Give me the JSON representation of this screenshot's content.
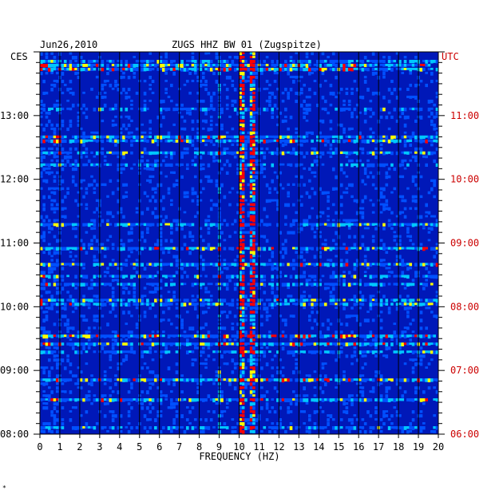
{
  "header": {
    "date": "Jun26,2010",
    "station": "ZUGS HHZ BW 01 (Zugspitze)",
    "left_timezone": "CES",
    "right_timezone": "UTC"
  },
  "footer_mark": "*",
  "colors": {
    "background_blue": "#0018b8",
    "left_axis_text": "#000000",
    "right_axis_text": "#cc0000"
  },
  "chart_data": {
    "type": "heatmap",
    "title": "ZUGS HHZ BW 01 (Zugspitze)",
    "date": "Jun26,2010",
    "xlabel": "FREQUENCY (HZ)",
    "xlim": [
      0,
      20
    ],
    "x_ticks": [
      "0",
      "1",
      "2",
      "3",
      "4",
      "5",
      "6",
      "7",
      "8",
      "9",
      "10",
      "11",
      "12",
      "13",
      "14",
      "15",
      "16",
      "17",
      "18",
      "19",
      "20"
    ],
    "y_axis_left": {
      "timezone": "CES",
      "ticks": [
        "13:00",
        "12:00",
        "11:00",
        "10:00",
        "09:00",
        "08:00"
      ]
    },
    "y_axis_right": {
      "timezone": "UTC",
      "ticks": [
        "11:00",
        "10:00",
        "09:00",
        "08:00",
        "07:00",
        "06:00"
      ]
    },
    "time_range_ces": [
      "08:00",
      "14:00"
    ],
    "colormap": [
      "#000080",
      "#0018b8",
      "#0050ff",
      "#00c8ff",
      "#ffff00",
      "#ff0000"
    ],
    "features": [
      {
        "frequency_hz": 10.1,
        "description": "persistent narrow band"
      },
      {
        "frequency_hz": 10.7,
        "description": "persistent narrow band"
      },
      {
        "frequency_hz": 9.0,
        "description": "intermittent band"
      }
    ]
  }
}
